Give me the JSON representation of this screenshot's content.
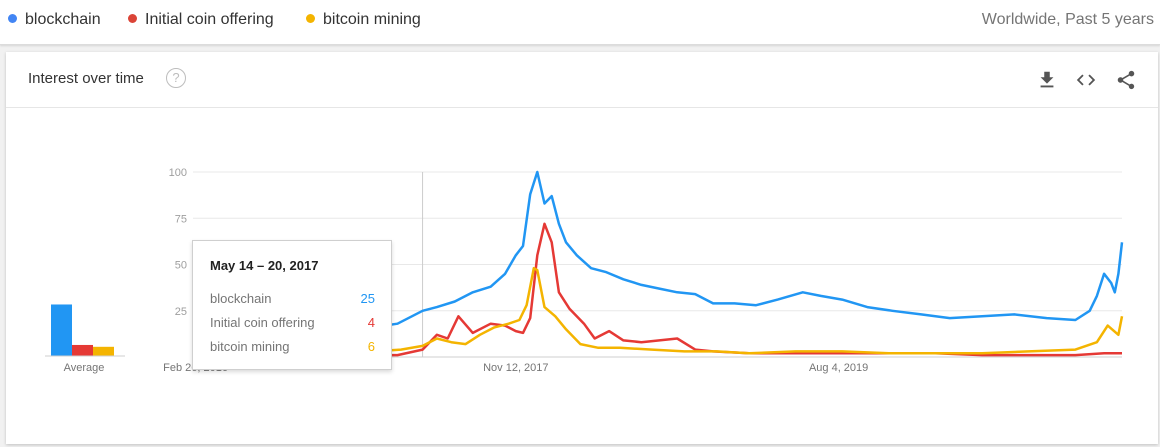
{
  "legend": [
    {
      "label": "blockchain",
      "color": "#4285f4"
    },
    {
      "label": "Initial coin offering",
      "color": "#db4437"
    },
    {
      "label": "bitcoin mining",
      "color": "#f4b400"
    }
  ],
  "region": "Worldwide, Past 5 years",
  "card": {
    "title": "Interest over time",
    "help_icon": "?",
    "icons": [
      "download-icon",
      "embed-code-icon",
      "share-icon"
    ]
  },
  "tooltip": {
    "title": "May 14 – 20, 2017",
    "rows": [
      {
        "label": "blockchain",
        "value": "25",
        "color": "#2196f3"
      },
      {
        "label": "Initial coin offering",
        "value": "4",
        "color": "#e53935"
      },
      {
        "label": "bitcoin mining",
        "value": "6",
        "color": "#f4b400"
      }
    ]
  },
  "chart_data": {
    "type": "line",
    "x_ticks": [
      "Feb 26, 2016",
      "Nov 12, 2017",
      "Aug 4, 2019"
    ],
    "y_ticks": [
      25,
      50,
      75,
      100
    ],
    "ylim": [
      0,
      100
    ],
    "xlim": [
      "2016-02-21",
      "2021-02-07"
    ],
    "grid": true,
    "average": {
      "label": "Average",
      "values": [
        28,
        6,
        5
      ]
    },
    "series": [
      {
        "name": "blockchain",
        "color": "#2196f3",
        "points": [
          [
            "2016-02-21",
            9
          ],
          [
            "2016-04-10",
            8
          ],
          [
            "2016-06-05",
            9
          ],
          [
            "2016-08-07",
            10
          ],
          [
            "2016-10-09",
            10
          ],
          [
            "2016-12-11",
            14
          ],
          [
            "2017-02-05",
            16
          ],
          [
            "2017-03-26",
            18
          ],
          [
            "2017-05-14",
            25
          ],
          [
            "2017-06-11",
            27
          ],
          [
            "2017-07-16",
            30
          ],
          [
            "2017-08-20",
            35
          ],
          [
            "2017-09-24",
            38
          ],
          [
            "2017-10-22",
            45
          ],
          [
            "2017-11-12",
            55
          ],
          [
            "2017-11-26",
            60
          ],
          [
            "2017-12-10",
            88
          ],
          [
            "2017-12-24",
            100
          ],
          [
            "2018-01-07",
            83
          ],
          [
            "2018-01-21",
            87
          ],
          [
            "2018-02-04",
            72
          ],
          [
            "2018-02-18",
            62
          ],
          [
            "2018-03-11",
            55
          ],
          [
            "2018-04-08",
            48
          ],
          [
            "2018-05-06",
            46
          ],
          [
            "2018-06-10",
            42
          ],
          [
            "2018-07-15",
            39
          ],
          [
            "2018-08-19",
            37
          ],
          [
            "2018-09-23",
            35
          ],
          [
            "2018-10-28",
            34
          ],
          [
            "2018-12-02",
            29
          ],
          [
            "2019-01-13",
            29
          ],
          [
            "2019-02-24",
            28
          ],
          [
            "2019-04-07",
            31
          ],
          [
            "2019-05-26",
            35
          ],
          [
            "2019-06-30",
            33
          ],
          [
            "2019-08-11",
            31
          ],
          [
            "2019-09-29",
            27
          ],
          [
            "2019-11-17",
            25
          ],
          [
            "2020-01-12",
            23
          ],
          [
            "2020-03-08",
            21
          ],
          [
            "2020-05-10",
            22
          ],
          [
            "2020-07-12",
            23
          ],
          [
            "2020-09-13",
            21
          ],
          [
            "2020-11-08",
            20
          ],
          [
            "2020-12-06",
            25
          ],
          [
            "2020-12-20",
            33
          ],
          [
            "2021-01-03",
            45
          ],
          [
            "2021-01-17",
            40
          ],
          [
            "2021-01-24",
            35
          ],
          [
            "2021-01-31",
            45
          ],
          [
            "2021-02-07",
            62
          ]
        ]
      },
      {
        "name": "Initial coin offering",
        "color": "#e53935",
        "points": [
          [
            "2016-02-21",
            1
          ],
          [
            "2016-06-05",
            1
          ],
          [
            "2016-10-09",
            1
          ],
          [
            "2017-02-05",
            1
          ],
          [
            "2017-03-26",
            1
          ],
          [
            "2017-05-14",
            4
          ],
          [
            "2017-06-11",
            12
          ],
          [
            "2017-07-02",
            10
          ],
          [
            "2017-07-23",
            22
          ],
          [
            "2017-08-20",
            13
          ],
          [
            "2017-09-24",
            18
          ],
          [
            "2017-10-22",
            17
          ],
          [
            "2017-11-12",
            14
          ],
          [
            "2017-11-26",
            13
          ],
          [
            "2017-12-10",
            21
          ],
          [
            "2017-12-24",
            55
          ],
          [
            "2018-01-07",
            72
          ],
          [
            "2018-01-21",
            62
          ],
          [
            "2018-02-04",
            35
          ],
          [
            "2018-02-25",
            26
          ],
          [
            "2018-03-25",
            18
          ],
          [
            "2018-04-15",
            10
          ],
          [
            "2018-05-13",
            14
          ],
          [
            "2018-06-10",
            9
          ],
          [
            "2018-07-15",
            8
          ],
          [
            "2018-08-19",
            9
          ],
          [
            "2018-09-23",
            10
          ],
          [
            "2018-10-28",
            4
          ],
          [
            "2018-12-02",
            3
          ],
          [
            "2019-02-10",
            2
          ],
          [
            "2019-05-12",
            2
          ],
          [
            "2019-08-11",
            2
          ],
          [
            "2019-11-10",
            2
          ],
          [
            "2020-02-09",
            2
          ],
          [
            "2020-05-10",
            1
          ],
          [
            "2020-08-09",
            1
          ],
          [
            "2020-11-08",
            1
          ],
          [
            "2021-01-03",
            2
          ],
          [
            "2021-02-07",
            2
          ]
        ]
      },
      {
        "name": "bitcoin mining",
        "color": "#f4b400",
        "points": [
          [
            "2016-02-21",
            2
          ],
          [
            "2016-06-05",
            2
          ],
          [
            "2016-10-09",
            2
          ],
          [
            "2017-02-05",
            3
          ],
          [
            "2017-04-02",
            4
          ],
          [
            "2017-05-14",
            6
          ],
          [
            "2017-06-11",
            10
          ],
          [
            "2017-07-09",
            8
          ],
          [
            "2017-08-06",
            7
          ],
          [
            "2017-09-03",
            12
          ],
          [
            "2017-10-01",
            16
          ],
          [
            "2017-10-29",
            18
          ],
          [
            "2017-11-19",
            20
          ],
          [
            "2017-12-03",
            28
          ],
          [
            "2017-12-17",
            48
          ],
          [
            "2017-12-24",
            47
          ],
          [
            "2018-01-07",
            27
          ],
          [
            "2018-01-28",
            22
          ],
          [
            "2018-02-18",
            15
          ],
          [
            "2018-03-18",
            7
          ],
          [
            "2018-04-22",
            5
          ],
          [
            "2018-06-03",
            5
          ],
          [
            "2018-08-05",
            4
          ],
          [
            "2018-10-07",
            3
          ],
          [
            "2018-12-09",
            3
          ],
          [
            "2019-02-10",
            2
          ],
          [
            "2019-05-12",
            3
          ],
          [
            "2019-08-11",
            3
          ],
          [
            "2019-11-10",
            2
          ],
          [
            "2020-02-09",
            2
          ],
          [
            "2020-05-10",
            2
          ],
          [
            "2020-08-09",
            3
          ],
          [
            "2020-11-08",
            4
          ],
          [
            "2020-12-20",
            8
          ],
          [
            "2021-01-10",
            17
          ],
          [
            "2021-01-31",
            12
          ],
          [
            "2021-02-07",
            22
          ]
        ]
      }
    ]
  }
}
